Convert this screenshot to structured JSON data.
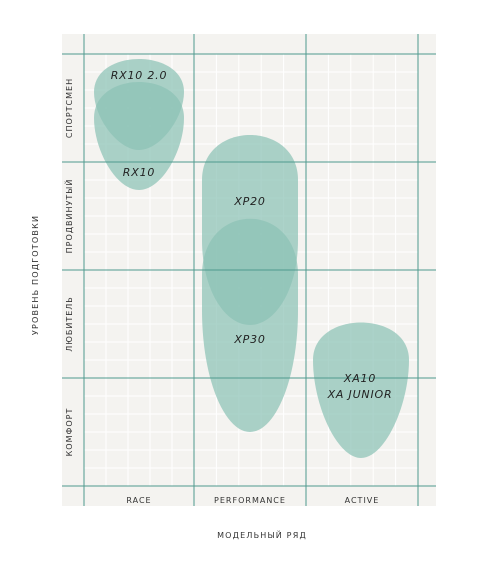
{
  "chart_data": {
    "type": "heatmap",
    "xlabel": "МОДЕЛЬНЫЙ РЯД",
    "ylabel": "УРОВЕНЬ ПОДГОТОВКИ",
    "x_categories": [
      "RACE",
      "PERFORMANCE",
      "ACTIVE"
    ],
    "y_categories": [
      "КОМФОРТ",
      "ЛЮБИТЕЛЬ",
      "ПРОДВИНУТЫЙ",
      "СПОРТСМЕН"
    ],
    "grid": true,
    "colors": {
      "background": "#f4f3f0",
      "grid_major": "#4e9a8e",
      "grid_minor": "#ffffff",
      "fill": "#8cc2b5"
    },
    "products": [
      {
        "label": "RX10 2.0",
        "x_category": "RACE",
        "y_range": [
          "СПОРТСМЕН",
          "СПОРТСМЕН"
        ]
      },
      {
        "label": "RX10",
        "x_category": "RACE",
        "y_range": [
          "ПРОДВИНУТЫЙ",
          "СПОРТСМЕН"
        ]
      },
      {
        "label": "XP20",
        "x_category": "PERFORMANCE",
        "y_range": [
          "ЛЮБИТЕЛЬ",
          "ПРОДВИНУТЫЙ"
        ]
      },
      {
        "label": "XP30",
        "x_category": "PERFORMANCE",
        "y_range": [
          "КОМФОРТ",
          "ПРОДВИНУТЫЙ"
        ]
      },
      {
        "label_lines": [
          "XA10",
          "XA JUNIOR"
        ],
        "x_category": "ACTIVE",
        "y_range": [
          "КОМФОРТ",
          "ЛЮБИТЕЛЬ"
        ]
      }
    ]
  }
}
